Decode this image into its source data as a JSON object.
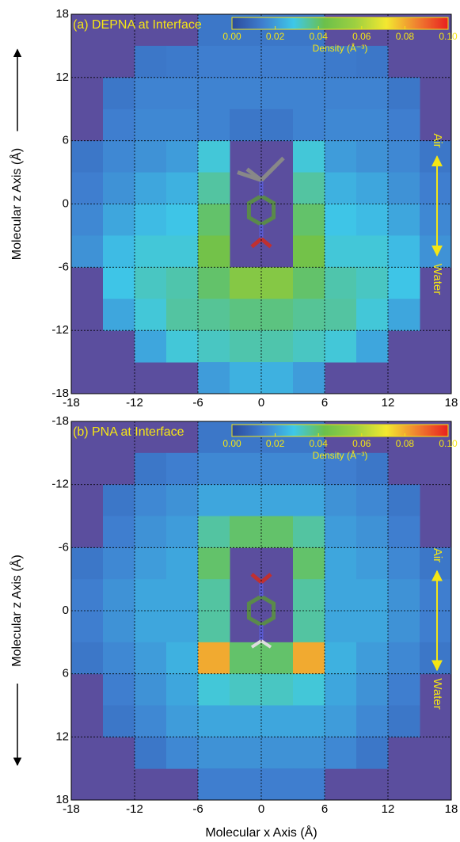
{
  "chart_data": [
    {
      "type": "heatmap",
      "title": "(a) DEPNA at Interface",
      "ylabel": "Molecular z Axis (Å)",
      "annotations": [
        "Air",
        "Water"
      ],
      "x": [
        -16.5,
        -13.5,
        -10.5,
        -7.5,
        -4.5,
        -1.5,
        1.5,
        4.5,
        7.5,
        10.5,
        13.5,
        16.5
      ],
      "y": [
        16.5,
        13.5,
        10.5,
        7.5,
        4.5,
        1.5,
        -1.5,
        -4.5,
        -7.5,
        -10.5,
        -13.5,
        -16.5
      ],
      "values": [
        [
          null,
          null,
          null,
          null,
          0.012,
          0.012,
          0.012,
          0.012,
          null,
          null,
          null,
          null
        ],
        [
          null,
          null,
          0.012,
          0.013,
          0.014,
          0.014,
          0.014,
          0.014,
          0.013,
          0.012,
          null,
          null
        ],
        [
          null,
          0.012,
          0.015,
          0.015,
          0.015,
          0.015,
          0.015,
          0.015,
          0.015,
          0.015,
          0.012,
          null
        ],
        [
          null,
          0.014,
          0.016,
          0.016,
          0.015,
          0.012,
          0.012,
          0.015,
          0.016,
          0.016,
          0.014,
          null
        ],
        [
          0.012,
          0.016,
          0.018,
          0.02,
          0.03,
          null,
          null,
          0.03,
          0.02,
          0.018,
          0.016,
          0.012
        ],
        [
          0.014,
          0.018,
          0.022,
          0.024,
          0.035,
          null,
          null,
          0.035,
          0.024,
          0.022,
          0.018,
          0.014
        ],
        [
          0.016,
          0.022,
          0.026,
          0.028,
          0.04,
          null,
          null,
          0.04,
          0.028,
          0.026,
          0.022,
          0.016
        ],
        [
          0.018,
          0.026,
          0.03,
          0.03,
          0.045,
          null,
          null,
          0.045,
          0.03,
          0.03,
          0.026,
          0.018
        ],
        [
          null,
          0.028,
          0.032,
          0.034,
          0.04,
          0.05,
          0.05,
          0.04,
          0.034,
          0.032,
          0.028,
          null
        ],
        [
          null,
          0.022,
          0.03,
          0.035,
          0.036,
          0.038,
          0.038,
          0.036,
          0.035,
          0.03,
          0.022,
          null
        ],
        [
          null,
          null,
          0.022,
          0.03,
          0.032,
          0.034,
          0.034,
          0.032,
          0.03,
          0.022,
          null,
          null
        ],
        [
          null,
          null,
          null,
          null,
          0.02,
          0.024,
          0.024,
          0.02,
          null,
          null,
          null,
          null
        ]
      ],
      "xlim": [
        -18,
        18
      ],
      "ylim": [
        -18,
        18
      ],
      "xticks": [
        -18,
        -12,
        -6,
        0,
        6,
        12,
        18
      ],
      "yticks": [
        -18,
        -12,
        -6,
        0,
        6,
        12,
        18
      ],
      "grid": true,
      "background": "#5b4e9e",
      "colormap": [
        "#2a4a9c",
        "#3f7fd0",
        "#3ec8e8",
        "#6cc04a",
        "#9ed040",
        "#f3e830",
        "#f08030",
        "#e82020"
      ],
      "colorbar": {
        "label": "Density (Å⁻³)",
        "lim": [
          0,
          0.1
        ],
        "ticks": [
          {
            "value": 0,
            "label": "0.00"
          },
          {
            "value": 0.02,
            "label": "0.02"
          },
          {
            "value": 0.04,
            "label": "0.04"
          },
          {
            "value": 0.06,
            "label": "0.06"
          },
          {
            "value": 0.08,
            "label": "0.08"
          },
          {
            "value": 0.1,
            "label": "0.10"
          }
        ]
      }
    },
    {
      "type": "heatmap",
      "title": "(b) PNA at Interface",
      "ylabel": "Molecular z Axis (Å)",
      "xlabel": "Molecular x Axis (Å)",
      "annotations": [
        "Air",
        "Water"
      ],
      "x": [
        -16.5,
        -13.5,
        -10.5,
        -7.5,
        -4.5,
        -1.5,
        1.5,
        4.5,
        7.5,
        10.5,
        13.5,
        16.5
      ],
      "y": [
        -16.5,
        -13.5,
        -10.5,
        -7.5,
        -4.5,
        -1.5,
        1.5,
        4.5,
        7.5,
        10.5,
        13.5,
        16.5
      ],
      "values": [
        [
          null,
          null,
          null,
          null,
          0.012,
          0.012,
          0.012,
          0.012,
          null,
          null,
          null,
          null
        ],
        [
          null,
          null,
          0.012,
          0.014,
          0.016,
          0.016,
          0.016,
          0.016,
          0.014,
          0.012,
          null,
          null
        ],
        [
          null,
          0.012,
          0.016,
          0.018,
          0.022,
          0.022,
          0.022,
          0.022,
          0.018,
          0.016,
          0.012,
          null
        ],
        [
          null,
          0.014,
          0.018,
          0.02,
          0.035,
          0.04,
          0.04,
          0.035,
          0.02,
          0.018,
          0.014,
          null
        ],
        [
          0.012,
          0.016,
          0.02,
          0.022,
          0.04,
          null,
          null,
          0.04,
          0.022,
          0.02,
          0.016,
          0.012
        ],
        [
          0.014,
          0.018,
          0.022,
          0.022,
          0.035,
          null,
          null,
          0.035,
          0.022,
          0.022,
          0.018,
          0.014
        ],
        [
          0.014,
          0.018,
          0.022,
          0.022,
          0.035,
          null,
          null,
          0.035,
          0.022,
          0.022,
          0.018,
          0.014
        ],
        [
          0.012,
          0.016,
          0.02,
          0.024,
          0.08,
          0.04,
          0.04,
          0.08,
          0.024,
          0.02,
          0.016,
          0.012
        ],
        [
          null,
          0.014,
          0.018,
          0.022,
          0.03,
          0.032,
          0.032,
          0.03,
          0.022,
          0.018,
          0.014,
          null
        ],
        [
          null,
          0.012,
          0.016,
          0.02,
          0.022,
          0.022,
          0.022,
          0.022,
          0.02,
          0.016,
          0.012,
          null
        ],
        [
          null,
          null,
          0.012,
          0.016,
          0.018,
          0.018,
          0.018,
          0.018,
          0.016,
          0.012,
          null,
          null
        ],
        [
          null,
          null,
          null,
          null,
          0.014,
          0.014,
          0.014,
          0.014,
          null,
          null,
          null,
          null
        ]
      ],
      "xlim": [
        -18,
        18
      ],
      "ylim": [
        18,
        -18
      ],
      "xticks": [
        -18,
        -12,
        -6,
        0,
        6,
        12,
        18
      ],
      "yticks": [
        -18,
        -12,
        -6,
        0,
        6,
        12,
        18
      ],
      "grid": true,
      "background": "#5b4e9e",
      "colormap": [
        "#2a4a9c",
        "#3f7fd0",
        "#3ec8e8",
        "#6cc04a",
        "#9ed040",
        "#f3e830",
        "#f08030",
        "#e82020"
      ],
      "colorbar": {
        "label": "Density (Å⁻³)",
        "lim": [
          0,
          0.1
        ],
        "ticks": [
          {
            "value": 0,
            "label": "0.00"
          },
          {
            "value": 0.02,
            "label": "0.02"
          },
          {
            "value": 0.04,
            "label": "0.04"
          },
          {
            "value": 0.06,
            "label": "0.06"
          },
          {
            "value": 0.08,
            "label": "0.08"
          },
          {
            "value": 0.1,
            "label": "0.10"
          }
        ]
      }
    }
  ]
}
